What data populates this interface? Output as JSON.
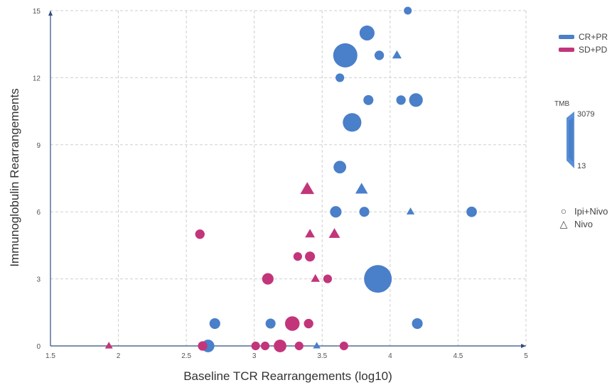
{
  "chart_data": {
    "type": "scatter",
    "xlabel": "Baseline TCR Rearrangements (log10)",
    "ylabel": "Immunoglobulin Rearrangements",
    "xlim": [
      1.5,
      5
    ],
    "ylim": [
      0,
      15
    ],
    "xticks": [
      "1.5",
      "2",
      "2.5",
      "3",
      "3.5",
      "4",
      "4.5",
      "5"
    ],
    "yticks": [
      "0",
      "3",
      "6",
      "9",
      "12",
      "15"
    ],
    "grid": true,
    "legend_response": [
      {
        "label": "CR+PR",
        "color": "#4a7fc9"
      },
      {
        "label": "SD+PD",
        "color": "#c2357a"
      }
    ],
    "legend_tmb": {
      "title": "TMB",
      "max": "3079",
      "min": "13"
    },
    "legend_treatment": [
      {
        "label": "Ipi+Nivo",
        "shape": "circle",
        "glyph": "○"
      },
      {
        "label": "Nivo",
        "shape": "triangle",
        "glyph": "△"
      }
    ],
    "series": [
      {
        "name": "CR+PR",
        "color": "#4a7fc9",
        "points": [
          {
            "x": 4.13,
            "y": 15,
            "shape": "circle",
            "tmb": 50
          },
          {
            "x": 3.83,
            "y": 14,
            "shape": "circle",
            "tmb": 600
          },
          {
            "x": 3.67,
            "y": 13,
            "shape": "circle",
            "tmb": 2200
          },
          {
            "x": 3.92,
            "y": 13,
            "shape": "circle",
            "tmb": 120
          },
          {
            "x": 4.05,
            "y": 13,
            "shape": "triangle",
            "tmb": 120
          },
          {
            "x": 3.63,
            "y": 12,
            "shape": "circle",
            "tmb": 80
          },
          {
            "x": 3.84,
            "y": 11,
            "shape": "circle",
            "tmb": 150
          },
          {
            "x": 4.08,
            "y": 11,
            "shape": "circle",
            "tmb": 120
          },
          {
            "x": 4.19,
            "y": 11,
            "shape": "circle",
            "tmb": 450
          },
          {
            "x": 3.72,
            "y": 10,
            "shape": "circle",
            "tmb": 1100
          },
          {
            "x": 3.63,
            "y": 8,
            "shape": "circle",
            "tmb": 350
          },
          {
            "x": 3.79,
            "y": 7,
            "shape": "triangle",
            "tmb": 350
          },
          {
            "x": 3.6,
            "y": 6,
            "shape": "circle",
            "tmb": 250
          },
          {
            "x": 3.81,
            "y": 6,
            "shape": "circle",
            "tmb": 150
          },
          {
            "x": 4.15,
            "y": 6,
            "shape": "triangle",
            "tmb": 60
          },
          {
            "x": 4.6,
            "y": 6,
            "shape": "circle",
            "tmb": 180
          },
          {
            "x": 3.91,
            "y": 3,
            "shape": "circle",
            "tmb": 3079
          },
          {
            "x": 2.71,
            "y": 1,
            "shape": "circle",
            "tmb": 200
          },
          {
            "x": 3.12,
            "y": 1,
            "shape": "circle",
            "tmb": 150
          },
          {
            "x": 4.2,
            "y": 1,
            "shape": "circle",
            "tmb": 200
          },
          {
            "x": 2.66,
            "y": 0,
            "shape": "circle",
            "tmb": 350
          },
          {
            "x": 3.46,
            "y": 0,
            "shape": "triangle",
            "tmb": 40
          }
        ]
      },
      {
        "name": "SD+PD",
        "color": "#c2357a",
        "points": [
          {
            "x": 3.39,
            "y": 7,
            "shape": "triangle",
            "tmb": 500
          },
          {
            "x": 2.6,
            "y": 5,
            "shape": "circle",
            "tmb": 120
          },
          {
            "x": 3.41,
            "y": 5,
            "shape": "triangle",
            "tmb": 150
          },
          {
            "x": 3.59,
            "y": 5,
            "shape": "triangle",
            "tmb": 250
          },
          {
            "x": 3.32,
            "y": 4,
            "shape": "circle",
            "tmb": 80
          },
          {
            "x": 3.41,
            "y": 4,
            "shape": "circle",
            "tmb": 150
          },
          {
            "x": 3.1,
            "y": 3,
            "shape": "circle",
            "tmb": 250
          },
          {
            "x": 3.45,
            "y": 3,
            "shape": "triangle",
            "tmb": 100
          },
          {
            "x": 3.54,
            "y": 3,
            "shape": "circle",
            "tmb": 80
          },
          {
            "x": 3.28,
            "y": 1,
            "shape": "circle",
            "tmb": 550
          },
          {
            "x": 3.4,
            "y": 1,
            "shape": "circle",
            "tmb": 120
          },
          {
            "x": 1.93,
            "y": 0,
            "shape": "triangle",
            "tmb": 50
          },
          {
            "x": 2.62,
            "y": 0,
            "shape": "circle",
            "tmb": 120
          },
          {
            "x": 3.01,
            "y": 0,
            "shape": "circle",
            "tmb": 80
          },
          {
            "x": 3.08,
            "y": 0,
            "shape": "circle",
            "tmb": 80
          },
          {
            "x": 3.19,
            "y": 0,
            "shape": "circle",
            "tmb": 350
          },
          {
            "x": 3.33,
            "y": 0,
            "shape": "circle",
            "tmb": 80
          },
          {
            "x": 3.66,
            "y": 0,
            "shape": "circle",
            "tmb": 80
          }
        ]
      }
    ]
  }
}
